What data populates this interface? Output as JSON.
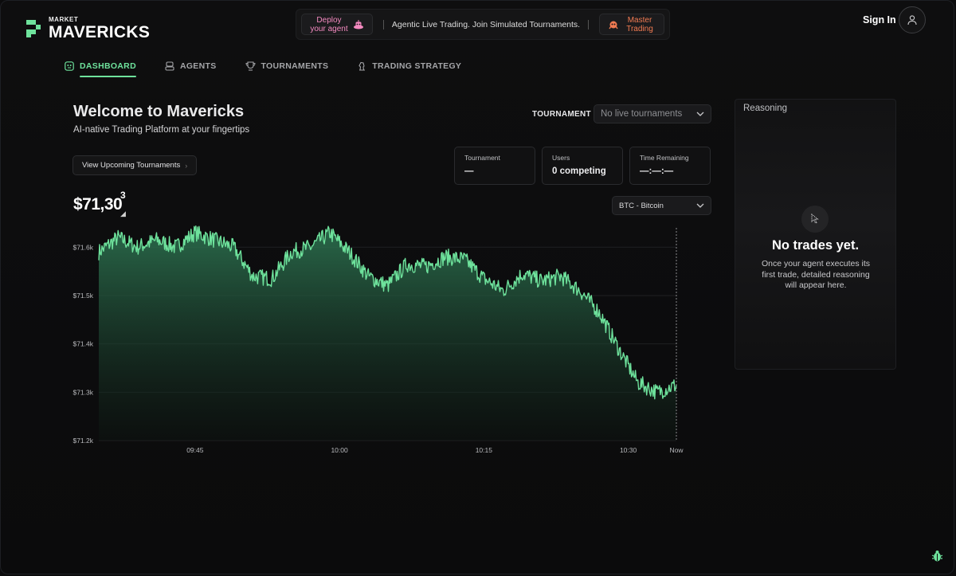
{
  "brand": {
    "small": "MARKET",
    "big": "MAVERICKS",
    "accent": "#6ee29c"
  },
  "promo": {
    "deploy_label": "Deploy your agent",
    "tagline": "Agentic Live Trading. Join Simulated Tournaments.",
    "master_label": "Master Trading",
    "deploy_color": "#f48ac0",
    "master_color": "#f27b52"
  },
  "header": {
    "signin_label": "Sign In"
  },
  "nav": {
    "items": [
      {
        "label": "DASHBOARD",
        "icon": "dashboard-icon",
        "active": true
      },
      {
        "label": "AGENTS",
        "icon": "robot-icon",
        "active": false
      },
      {
        "label": "TOURNAMENTS",
        "icon": "trophy-icon",
        "active": false
      },
      {
        "label": "TRADING STRATEGY",
        "icon": "chess-knight-icon",
        "active": false
      }
    ]
  },
  "main": {
    "title": "Welcome to Mavericks",
    "subtitle": "AI-native Trading Platform at your fingertips",
    "upcoming_label": "View Upcoming Tournaments",
    "tournament_label": "TOURNAMENT",
    "tournament_select": "No live tournaments",
    "cards": [
      {
        "label": "Tournament",
        "value": "—"
      },
      {
        "label": "Users",
        "value": "0 competing"
      },
      {
        "label": "Time Remaining",
        "value": "—:—:—"
      }
    ],
    "price_main": "$71,30",
    "price_sup": "3",
    "coin_select": "BTC - Bitcoin"
  },
  "chart_data": {
    "type": "area",
    "title": "",
    "xlabel": "",
    "ylabel": "",
    "x_ticks": [
      "09:45",
      "10:00",
      "10:15",
      "10:30",
      "Now"
    ],
    "y_ticks": [
      "$71.6k",
      "$71.5k",
      "$71.4k",
      "$71.3k",
      "$71.2k"
    ],
    "ylim": [
      71200,
      71640
    ],
    "grid": true,
    "color": "#6ee29c",
    "series": [
      {
        "x": [
          "09:35",
          "09:37",
          "09:39",
          "09:41",
          "09:43",
          "09:45",
          "09:47",
          "09:49",
          "09:51",
          "09:53",
          "09:55",
          "09:57",
          "09:59",
          "10:01",
          "10:03",
          "10:05",
          "10:07",
          "10:09",
          "10:11",
          "10:13",
          "10:15",
          "10:17",
          "10:19",
          "10:21",
          "10:23",
          "10:25",
          "10:27",
          "10:29",
          "10:31",
          "10:33",
          "10:35"
        ],
        "values": [
          71590,
          71620,
          71600,
          71615,
          71600,
          71630,
          71615,
          71600,
          71540,
          71535,
          71590,
          71600,
          71630,
          71590,
          71540,
          71520,
          71565,
          71560,
          71580,
          71575,
          71535,
          71510,
          71545,
          71530,
          71540,
          71510,
          71465,
          71390,
          71320,
          71300,
          71315
        ]
      }
    ]
  },
  "reasoning": {
    "title": "Reasoning",
    "icon": "pointer-icon",
    "empty_title": "No trades yet.",
    "empty_desc": "Once your agent executes its first trade, detailed reasoning will appear here."
  }
}
